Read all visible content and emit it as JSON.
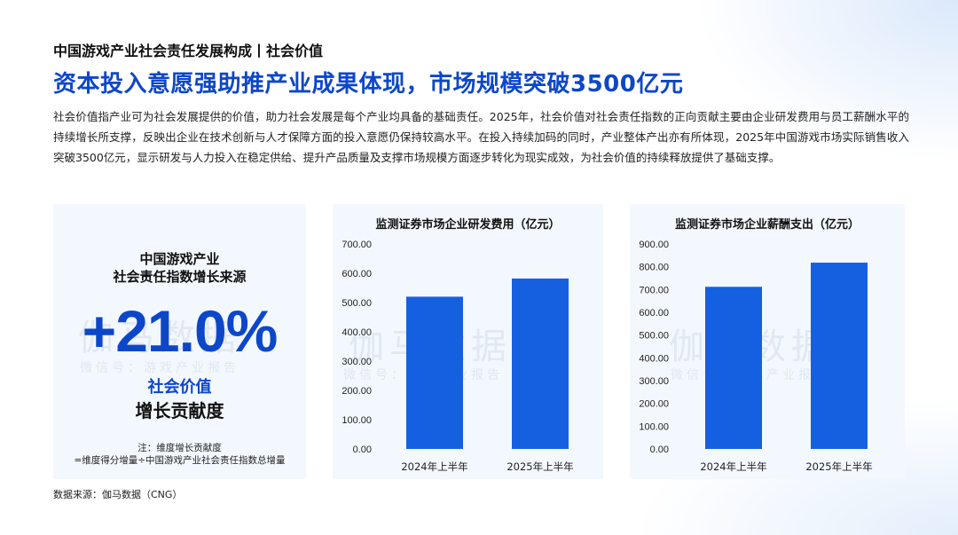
{
  "header": {
    "section_title": "中国游戏产业社会责任发展构成丨社会价值",
    "headline": "资本投入意愿强助推产业成果体现，市场规模突破3500亿元",
    "description": "社会价值指产业可为社会发展提供的价值，助力社会发展是每个产业均具备的基础责任。2025年，社会价值对社会责任指数的正向贡献主要由企业研发费用与员工薪酬水平的持续增长所支撑，反映出企业在技术创新与人才保障方面的投入意愿仍保持较高水平。在投入持续加码的同时，产业整体产出亦有所体现，2025年中国游戏市场实际销售收入突破3500亿元，显示研发与人力投入在稳定供给、提升产品质量及支撑市场规模方面逐步转化为现实成效，为社会价值的持续释放提供了基础支撑。"
  },
  "left_panel": {
    "title_line1": "中国游戏产业",
    "title_line2": "社会责任指数增长来源",
    "big_value": "+21.0%",
    "metric_label": "社会价值",
    "metric_sub": "增长贡献度",
    "note_line1": "注：维度增长贡献度",
    "note_line2": "=维度得分增量÷中国游戏产业社会责任指数总增量"
  },
  "watermark": {
    "main": "伽马数据",
    "sub": "微信号：游戏产业报告"
  },
  "colors": {
    "accent": "#0d47c9",
    "bar": "#1560e0"
  },
  "chart_data": [
    {
      "type": "bar",
      "title": "监测证券市场企业研发费用（亿元）",
      "categories": [
        "2024年上半年",
        "2025年上半年"
      ],
      "values": [
        520,
        582
      ],
      "ylim": [
        0,
        700
      ],
      "yticks": [
        "0.00",
        "100.00",
        "200.00",
        "300.00",
        "400.00",
        "500.00",
        "600.00",
        "700.00"
      ],
      "grid": false
    },
    {
      "type": "bar",
      "title": "监测证券市场企业薪酬支出（亿元）",
      "categories": [
        "2024年上半年",
        "2025年上半年"
      ],
      "values": [
        712,
        818
      ],
      "ylim": [
        0,
        900
      ],
      "yticks": [
        "0.00",
        "100.00",
        "200.00",
        "300.00",
        "400.00",
        "500.00",
        "600.00",
        "700.00",
        "800.00",
        "900.00"
      ],
      "grid": false
    }
  ],
  "footer": {
    "source": "数据来源：伽马数据（CNG）"
  }
}
